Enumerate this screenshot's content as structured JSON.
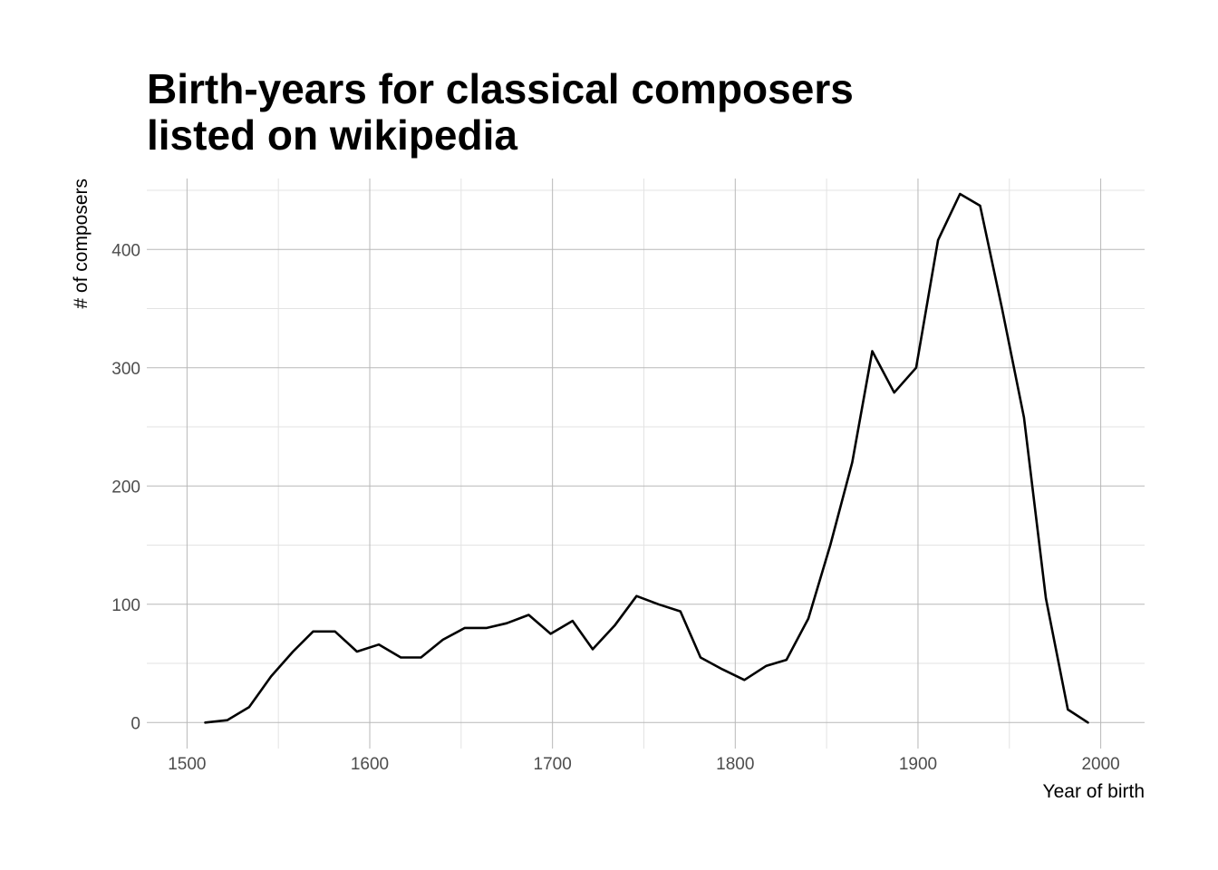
{
  "chart_data": {
    "type": "line",
    "title_lines": [
      "Birth-years for classical composers",
      "listed on wikipedia"
    ],
    "xlabel": "Year of birth",
    "ylabel": "# of composers",
    "xlim": [
      1478,
      2024
    ],
    "ylim": [
      -22,
      460
    ],
    "x_ticks": [
      1500,
      1600,
      1700,
      1800,
      1900,
      2000
    ],
    "x_tick_labels": [
      "1500",
      "1600",
      "1700",
      "1800",
      "1900",
      "2000"
    ],
    "x_minor_ticks": [
      1550,
      1650,
      1750,
      1850,
      1950
    ],
    "y_ticks": [
      0,
      100,
      200,
      300,
      400
    ],
    "y_tick_labels": [
      "0",
      "100",
      "200",
      "300",
      "400"
    ],
    "y_minor_ticks": [
      50,
      150,
      250,
      350,
      450
    ],
    "grid": true,
    "line_color": "#000000",
    "series": [
      {
        "x": [
          1510,
          1522,
          1534,
          1546,
          1558,
          1569,
          1581,
          1593,
          1605,
          1617,
          1628,
          1640,
          1652,
          1664,
          1675,
          1687,
          1699,
          1711,
          1722,
          1734,
          1746,
          1758,
          1770,
          1781,
          1793,
          1805,
          1817,
          1828,
          1840,
          1852,
          1864,
          1875,
          1887,
          1899,
          1911,
          1923,
          1934,
          1946,
          1958,
          1970,
          1982,
          1993
        ],
        "y": [
          0,
          2,
          13,
          39,
          60,
          77,
          77,
          60,
          66,
          55,
          55,
          70,
          80,
          80,
          84,
          91,
          75,
          86,
          62,
          82,
          107,
          100,
          94,
          55,
          45,
          36,
          48,
          53,
          88,
          150,
          220,
          314,
          279,
          300,
          408,
          447,
          437,
          350,
          258,
          105,
          11,
          0
        ]
      }
    ]
  }
}
